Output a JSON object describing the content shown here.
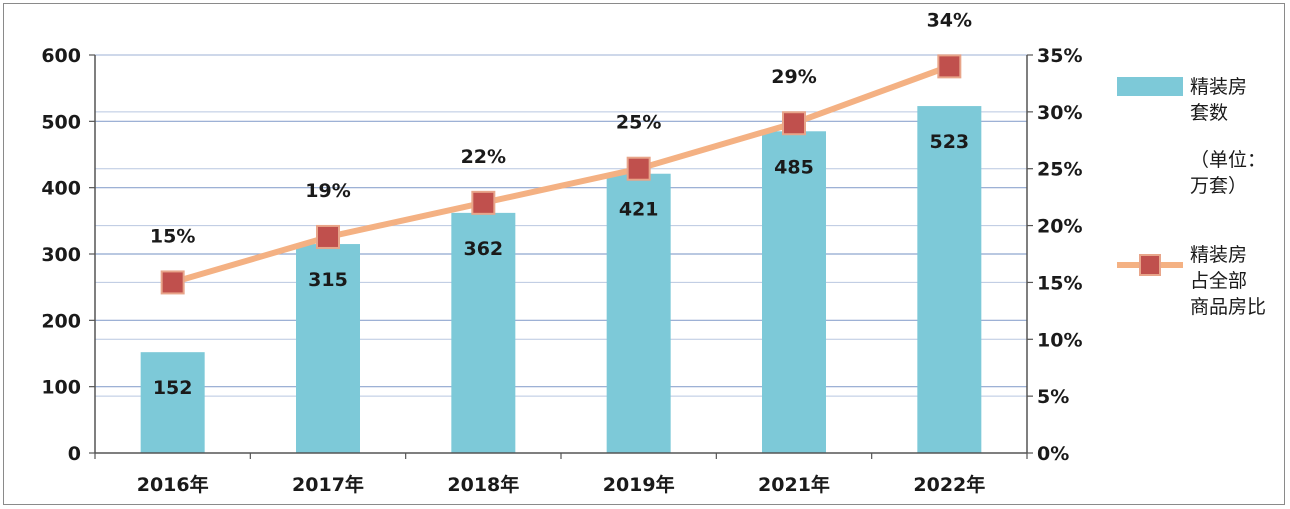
{
  "chart_data": {
    "type": "bar",
    "categories": [
      "2016年",
      "2017年",
      "2018年",
      "2019年",
      "2021年",
      "2022年"
    ],
    "series": [
      {
        "name": "精装房套数",
        "type": "bar",
        "axis": "left",
        "values": [
          152,
          315,
          362,
          421,
          485,
          523
        ],
        "color": "#7dc9d8"
      },
      {
        "name": "精装房占全部商品房比",
        "type": "line",
        "axis": "right",
        "values": [
          15,
          19,
          22,
          25,
          29,
          34
        ],
        "labels": [
          "15%",
          "19%",
          "22%",
          "25%",
          "29%",
          "34%"
        ],
        "line_color": "#f4b183",
        "marker_color": "#c0504d"
      }
    ],
    "y_left": {
      "lim": [
        0,
        600
      ],
      "ticks": [
        "0",
        "100",
        "200",
        "300",
        "400",
        "500",
        "600"
      ]
    },
    "y_right": {
      "lim": [
        0,
        35
      ],
      "ticks": [
        "0%",
        "5%",
        "10%",
        "15%",
        "20%",
        "25%",
        "30%",
        "35%"
      ]
    },
    "grid": true,
    "legend_position": "right",
    "legend": {
      "bar_label_lines": [
        "精装房",
        "套数"
      ],
      "unit_lines": [
        "（单位：",
        "万套）"
      ],
      "line_label_lines": [
        "精装房",
        "占全部",
        "商品房比"
      ]
    }
  }
}
